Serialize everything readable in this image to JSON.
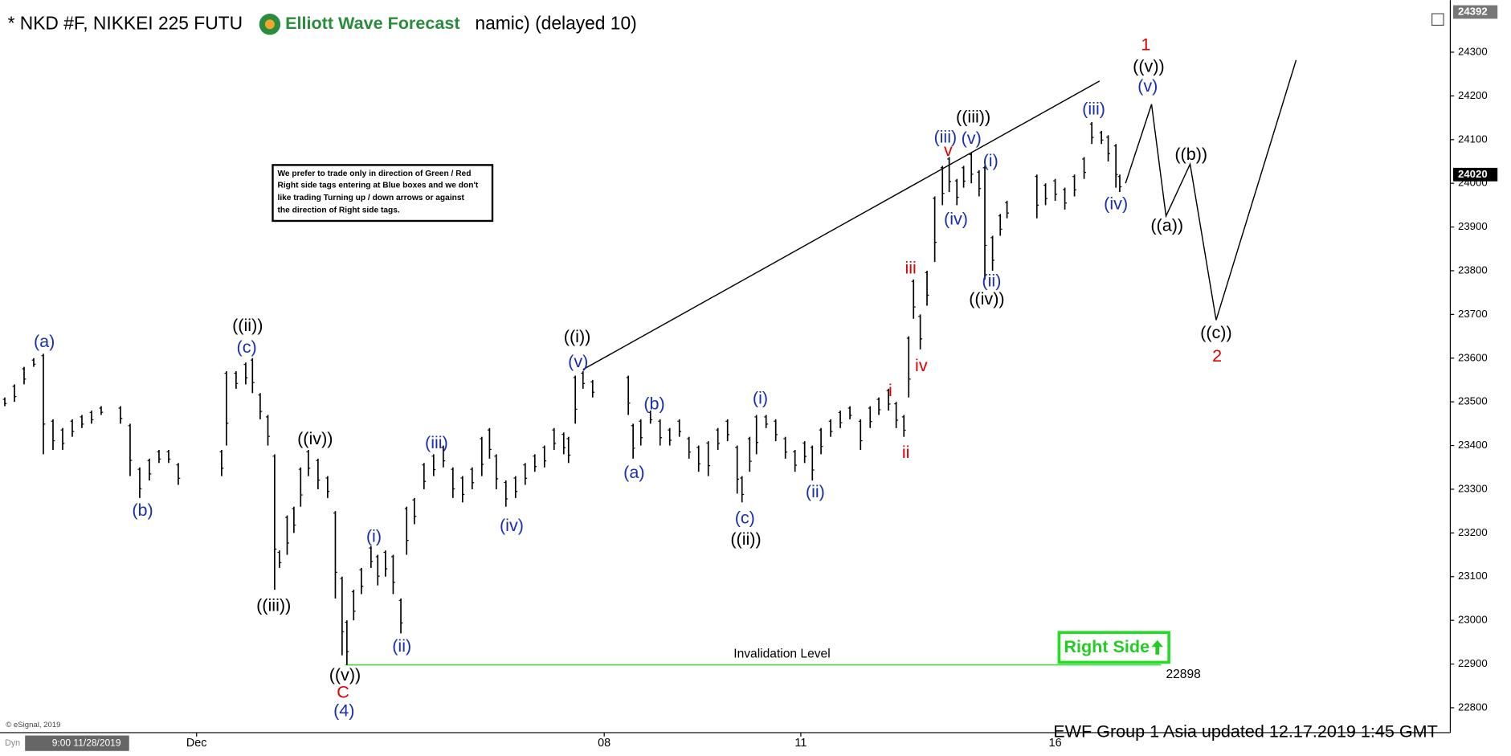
{
  "chart_data": {
    "type": "ohlc",
    "title": "* NKD #F, NIKKEI 225 FUTU",
    "logo": "Elliott Wave Forecast",
    "title_end": "namic) (delayed 10)",
    "xlim": [
      0,
      150.5
    ],
    "ylim": [
      22743,
      24419
    ],
    "xticks": [
      {
        "value": 20.4,
        "label": "Dec"
      },
      {
        "value": 62.7,
        "label": "08"
      },
      {
        "value": 83.1,
        "label": "11"
      },
      {
        "value": 109.5,
        "label": "16"
      }
    ],
    "yticks": [
      22800,
      22900,
      23000,
      23100,
      23200,
      23300,
      23400,
      23500,
      23600,
      23700,
      23800,
      23900,
      24000,
      24100,
      24200,
      24300
    ],
    "last_price": 24020,
    "axis_top_label": 24392,
    "bars": [
      {
        "x": 0.5,
        "low": 23490,
        "high": 23510
      },
      {
        "x": 1.5,
        "low": 23500,
        "high": 23540
      },
      {
        "x": 2.5,
        "low": 23540,
        "high": 23580
      },
      {
        "x": 3.5,
        "low": 23580,
        "high": 23600
      },
      {
        "x": 4.5,
        "low": 23380,
        "high": 23610
      },
      {
        "x": 5.5,
        "low": 23390,
        "high": 23460
      },
      {
        "x": 6.5,
        "low": 23390,
        "high": 23440
      },
      {
        "x": 7.5,
        "low": 23420,
        "high": 23460
      },
      {
        "x": 8.5,
        "low": 23440,
        "high": 23470
      },
      {
        "x": 9.5,
        "low": 23450,
        "high": 23480
      },
      {
        "x": 10.5,
        "low": 23470,
        "high": 23490
      },
      {
        "x": 12.5,
        "low": 23450,
        "high": 23490
      },
      {
        "x": 13.5,
        "low": 23330,
        "high": 23450
      },
      {
        "x": 14.5,
        "low": 23280,
        "high": 23350
      },
      {
        "x": 15.5,
        "low": 23320,
        "high": 23370
      },
      {
        "x": 16.5,
        "low": 23360,
        "high": 23390
      },
      {
        "x": 17.5,
        "low": 23360,
        "high": 23390
      },
      {
        "x": 18.5,
        "low": 23310,
        "high": 23360
      },
      {
        "x": 23,
        "low": 23330,
        "high": 23390
      },
      {
        "x": 23.5,
        "low": 23400,
        "high": 23570
      },
      {
        "x": 24.5,
        "low": 23530,
        "high": 23570
      },
      {
        "x": 25.5,
        "low": 23540,
        "high": 23590
      },
      {
        "x": 26.2,
        "low": 23520,
        "high": 23600
      },
      {
        "x": 27,
        "low": 23460,
        "high": 23520
      },
      {
        "x": 27.8,
        "low": 23400,
        "high": 23470
      },
      {
        "x": 28.5,
        "low": 23070,
        "high": 23380
      },
      {
        "x": 29,
        "low": 23120,
        "high": 23160
      },
      {
        "x": 29.8,
        "low": 23150,
        "high": 23240
      },
      {
        "x": 30.5,
        "low": 23200,
        "high": 23260
      },
      {
        "x": 31.2,
        "low": 23260,
        "high": 23350
      },
      {
        "x": 32,
        "low": 23330,
        "high": 23390
      },
      {
        "x": 33,
        "low": 23300,
        "high": 23370
      },
      {
        "x": 34,
        "low": 23280,
        "high": 23330
      },
      {
        "x": 34.8,
        "low": 23050,
        "high": 23250
      },
      {
        "x": 35.5,
        "low": 22920,
        "high": 23100
      },
      {
        "x": 36,
        "low": 22898,
        "high": 23000
      },
      {
        "x": 36.7,
        "low": 23000,
        "high": 23070
      },
      {
        "x": 37.5,
        "low": 23060,
        "high": 23120
      },
      {
        "x": 38.5,
        "low": 23120,
        "high": 23170
      },
      {
        "x": 39.2,
        "low": 23080,
        "high": 23150
      },
      {
        "x": 40,
        "low": 23100,
        "high": 23160
      },
      {
        "x": 40.8,
        "low": 23060,
        "high": 23150
      },
      {
        "x": 41.6,
        "low": 22970,
        "high": 23050
      },
      {
        "x": 42.2,
        "low": 23150,
        "high": 23260
      },
      {
        "x": 43,
        "low": 23220,
        "high": 23280
      },
      {
        "x": 44,
        "low": 23300,
        "high": 23360
      },
      {
        "x": 45,
        "low": 23330,
        "high": 23380
      },
      {
        "x": 46,
        "low": 23350,
        "high": 23400
      },
      {
        "x": 47,
        "low": 23280,
        "high": 23350
      },
      {
        "x": 48,
        "low": 23270,
        "high": 23330
      },
      {
        "x": 49,
        "low": 23300,
        "high": 23350
      },
      {
        "x": 50,
        "low": 23330,
        "high": 23420
      },
      {
        "x": 50.8,
        "low": 23370,
        "high": 23440
      },
      {
        "x": 51.5,
        "low": 23300,
        "high": 23380
      },
      {
        "x": 52.5,
        "low": 23260,
        "high": 23320
      },
      {
        "x": 53.5,
        "low": 23280,
        "high": 23330
      },
      {
        "x": 54.5,
        "low": 23310,
        "high": 23360
      },
      {
        "x": 55.5,
        "low": 23340,
        "high": 23380
      },
      {
        "x": 56.5,
        "low": 23350,
        "high": 23400
      },
      {
        "x": 57.5,
        "low": 23390,
        "high": 23440
      },
      {
        "x": 58.5,
        "low": 23380,
        "high": 23430
      },
      {
        "x": 59,
        "low": 23360,
        "high": 23420
      },
      {
        "x": 59.7,
        "low": 23450,
        "high": 23560
      },
      {
        "x": 60.5,
        "low": 23530,
        "high": 23570
      },
      {
        "x": 61.5,
        "low": 23510,
        "high": 23550
      },
      {
        "x": 65.2,
        "low": 23470,
        "high": 23560
      },
      {
        "x": 65.7,
        "low": 23370,
        "high": 23450
      },
      {
        "x": 66.5,
        "low": 23400,
        "high": 23460
      },
      {
        "x": 67.5,
        "low": 23450,
        "high": 23480
      },
      {
        "x": 68.5,
        "low": 23400,
        "high": 23460
      },
      {
        "x": 69.5,
        "low": 23400,
        "high": 23440
      },
      {
        "x": 70.5,
        "low": 23420,
        "high": 23460
      },
      {
        "x": 71.5,
        "low": 23370,
        "high": 23420
      },
      {
        "x": 72.5,
        "low": 23340,
        "high": 23400
      },
      {
        "x": 73.5,
        "low": 23330,
        "high": 23410
      },
      {
        "x": 74.5,
        "low": 23390,
        "high": 23440
      },
      {
        "x": 75.5,
        "low": 23410,
        "high": 23460
      },
      {
        "x": 76.5,
        "low": 23290,
        "high": 23400
      },
      {
        "x": 77,
        "low": 23270,
        "high": 23330
      },
      {
        "x": 77.8,
        "low": 23340,
        "high": 23420
      },
      {
        "x": 78.5,
        "low": 23380,
        "high": 23470
      },
      {
        "x": 79.5,
        "low": 23440,
        "high": 23470
      },
      {
        "x": 80.5,
        "low": 23410,
        "high": 23460
      },
      {
        "x": 81.5,
        "low": 23370,
        "high": 23420
      },
      {
        "x": 82.5,
        "low": 23340,
        "high": 23390
      },
      {
        "x": 83.5,
        "low": 23360,
        "high": 23410
      },
      {
        "x": 84.3,
        "low": 23320,
        "high": 23400
      },
      {
        "x": 85.2,
        "low": 23380,
        "high": 23440
      },
      {
        "x": 86.2,
        "low": 23420,
        "high": 23460
      },
      {
        "x": 87.2,
        "low": 23440,
        "high": 23480
      },
      {
        "x": 88.2,
        "low": 23460,
        "high": 23490
      },
      {
        "x": 89.3,
        "low": 23390,
        "high": 23460
      },
      {
        "x": 90.3,
        "low": 23440,
        "high": 23490
      },
      {
        "x": 91.2,
        "low": 23470,
        "high": 23510
      },
      {
        "x": 92.2,
        "low": 23480,
        "high": 23530
      },
      {
        "x": 93,
        "low": 23440,
        "high": 23500
      },
      {
        "x": 93.8,
        "low": 23420,
        "high": 23470
      },
      {
        "x": 94.3,
        "low": 23510,
        "high": 23650
      },
      {
        "x": 94.8,
        "low": 23690,
        "high": 23780
      },
      {
        "x": 95.5,
        "low": 23620,
        "high": 23700
      },
      {
        "x": 96.2,
        "low": 23720,
        "high": 23800
      },
      {
        "x": 97,
        "low": 23820,
        "high": 23970
      },
      {
        "x": 97.8,
        "low": 23950,
        "high": 24040
      },
      {
        "x": 98.5,
        "low": 23980,
        "high": 24060
      },
      {
        "x": 99.3,
        "low": 23950,
        "high": 24010
      },
      {
        "x": 100,
        "low": 23990,
        "high": 24040
      },
      {
        "x": 100.8,
        "low": 24000,
        "high": 24070
      },
      {
        "x": 101.6,
        "low": 23970,
        "high": 24030
      },
      {
        "x": 102.2,
        "low": 23780,
        "high": 24040
      },
      {
        "x": 103,
        "low": 23800,
        "high": 23880
      },
      {
        "x": 103.8,
        "low": 23880,
        "high": 23930
      },
      {
        "x": 104.5,
        "low": 23920,
        "high": 23960
      },
      {
        "x": 107.6,
        "low": 23920,
        "high": 24020
      },
      {
        "x": 108.5,
        "low": 23950,
        "high": 24000
      },
      {
        "x": 109.5,
        "low": 23960,
        "high": 24010
      },
      {
        "x": 110.5,
        "low": 23940,
        "high": 23990
      },
      {
        "x": 111.5,
        "low": 23970,
        "high": 24020
      },
      {
        "x": 112.5,
        "low": 24010,
        "high": 24060
      },
      {
        "x": 113.3,
        "low": 24090,
        "high": 24140
      },
      {
        "x": 114.3,
        "low": 24090,
        "high": 24120
      },
      {
        "x": 115,
        "low": 24050,
        "high": 24110
      },
      {
        "x": 115.8,
        "low": 23990,
        "high": 24090
      },
      {
        "x": 116.2,
        "low": 23980,
        "high": 24020
      }
    ],
    "trend_line": {
      "x": [
        60.5,
        114.1
      ],
      "y": [
        23574,
        24234
      ]
    },
    "projection": {
      "x": [
        116.8,
        119.5,
        121,
        123.5,
        126.2,
        134.5
      ],
      "y": [
        24000,
        24181,
        23925,
        24044,
        23687,
        24282
      ]
    },
    "invalidation": {
      "label": "Invalidation Level",
      "value": 22898,
      "x": [
        35.8,
        120.5
      ],
      "color": "#33dd33"
    },
    "annotations": [
      {
        "text": "(a)",
        "x": 4.6,
        "y": 23636,
        "color": "#1a2fb0"
      },
      {
        "text": "(b)",
        "x": 14.8,
        "y": 23250,
        "color": "#1a2fb0"
      },
      {
        "text": "((ii))",
        "x": 25.7,
        "y": 23673,
        "color": "#000000"
      },
      {
        "text": "(c)",
        "x": 25.6,
        "y": 23623,
        "color": "#1a2fb0"
      },
      {
        "text": "((iv))",
        "x": 32.7,
        "y": 23413,
        "color": "#000000"
      },
      {
        "text": "((iii))",
        "x": 28.4,
        "y": 23032,
        "color": "#000000"
      },
      {
        "text": "(i)",
        "x": 38.8,
        "y": 23190,
        "color": "#1a2fb0"
      },
      {
        "text": "(ii)",
        "x": 41.7,
        "y": 22939,
        "color": "#1a2fb0"
      },
      {
        "text": "((v))",
        "x": 35.8,
        "y": 22873,
        "color": "#000000"
      },
      {
        "text": "C",
        "x": 35.6,
        "y": 22833,
        "color": "#dd0000"
      },
      {
        "text": "(4)",
        "x": 35.7,
        "y": 22791,
        "color": "#1a2fb0"
      },
      {
        "text": "(iii)",
        "x": 45.3,
        "y": 23404,
        "color": "#1a2fb0"
      },
      {
        "text": "(iv)",
        "x": 53.1,
        "y": 23215,
        "color": "#1a2fb0"
      },
      {
        "text": "((i))",
        "x": 59.9,
        "y": 23647,
        "color": "#000000"
      },
      {
        "text": "(v)",
        "x": 60,
        "y": 23590,
        "color": "#1a2fb0"
      },
      {
        "text": "(a)",
        "x": 65.8,
        "y": 23336,
        "color": "#1a2fb0"
      },
      {
        "text": "(b)",
        "x": 67.9,
        "y": 23493,
        "color": "#1a2fb0"
      },
      {
        "text": "(i)",
        "x": 78.9,
        "y": 23506,
        "color": "#1a2fb0"
      },
      {
        "text": "(c)",
        "x": 77.3,
        "y": 23232,
        "color": "#1a2fb0"
      },
      {
        "text": "((ii))",
        "x": 77.4,
        "y": 23184,
        "color": "#000000"
      },
      {
        "text": "(ii)",
        "x": 84.6,
        "y": 23292,
        "color": "#1a2fb0"
      },
      {
        "text": "i",
        "x": 92.4,
        "y": 23524,
        "color": "#dd0000"
      },
      {
        "text": "ii",
        "x": 94,
        "y": 23382,
        "color": "#dd0000"
      },
      {
        "text": "iii",
        "x": 94.5,
        "y": 23804,
        "color": "#dd0000"
      },
      {
        "text": "iv",
        "x": 95.6,
        "y": 23581,
        "color": "#dd0000"
      },
      {
        "text": "v",
        "x": 98.4,
        "y": 24073,
        "color": "#dd0000"
      },
      {
        "text": "(iii)",
        "x": 98.1,
        "y": 24104,
        "color": "#1a2fb0"
      },
      {
        "text": "(iv)",
        "x": 99.2,
        "y": 23916,
        "color": "#1a2fb0"
      },
      {
        "text": "((iii))",
        "x": 101,
        "y": 24150,
        "color": "#000000"
      },
      {
        "text": "(v)",
        "x": 100.8,
        "y": 24101,
        "color": "#1a2fb0"
      },
      {
        "text": "(i)",
        "x": 102.8,
        "y": 24049,
        "color": "#1a2fb0"
      },
      {
        "text": "(ii)",
        "x": 102.9,
        "y": 23775,
        "color": "#1a2fb0"
      },
      {
        "text": "((iv))",
        "x": 102.4,
        "y": 23733,
        "color": "#000000"
      },
      {
        "text": "(iii)",
        "x": 113.5,
        "y": 24168,
        "color": "#1a2fb0"
      },
      {
        "text": "(iv)",
        "x": 115.8,
        "y": 23951,
        "color": "#1a2fb0"
      },
      {
        "text": "1",
        "x": 118.9,
        "y": 24315,
        "color": "#dd0000"
      },
      {
        "text": "((v))",
        "x": 119.2,
        "y": 24265,
        "color": "#000000"
      },
      {
        "text": "(v)",
        "x": 119.1,
        "y": 24220,
        "color": "#1a2fb0"
      },
      {
        "text": "((a))",
        "x": 121.1,
        "y": 23901,
        "color": "#000000"
      },
      {
        "text": "((b))",
        "x": 123.6,
        "y": 24064,
        "color": "#000000"
      },
      {
        "text": "((c))",
        "x": 126.2,
        "y": 23656,
        "color": "#000000"
      },
      {
        "text": "2",
        "x": 126.3,
        "y": 23603,
        "color": "#dd0000"
      }
    ],
    "note": [
      "We prefer to trade only in direction of Green / Red",
      "Right side tags entering at Blue boxes and we don't",
      "like trading Turning up / down arrows or against",
      "the direction of Right side tags."
    ],
    "right_side_tag": "Right Side",
    "footer": "EWF Group  1 Asia  updated 12.17.2019 1:45 GMT",
    "copyright": "© eSignal, 2019",
    "cursor_time": "9:00 11/28/2019",
    "mode": "Dyn"
  }
}
